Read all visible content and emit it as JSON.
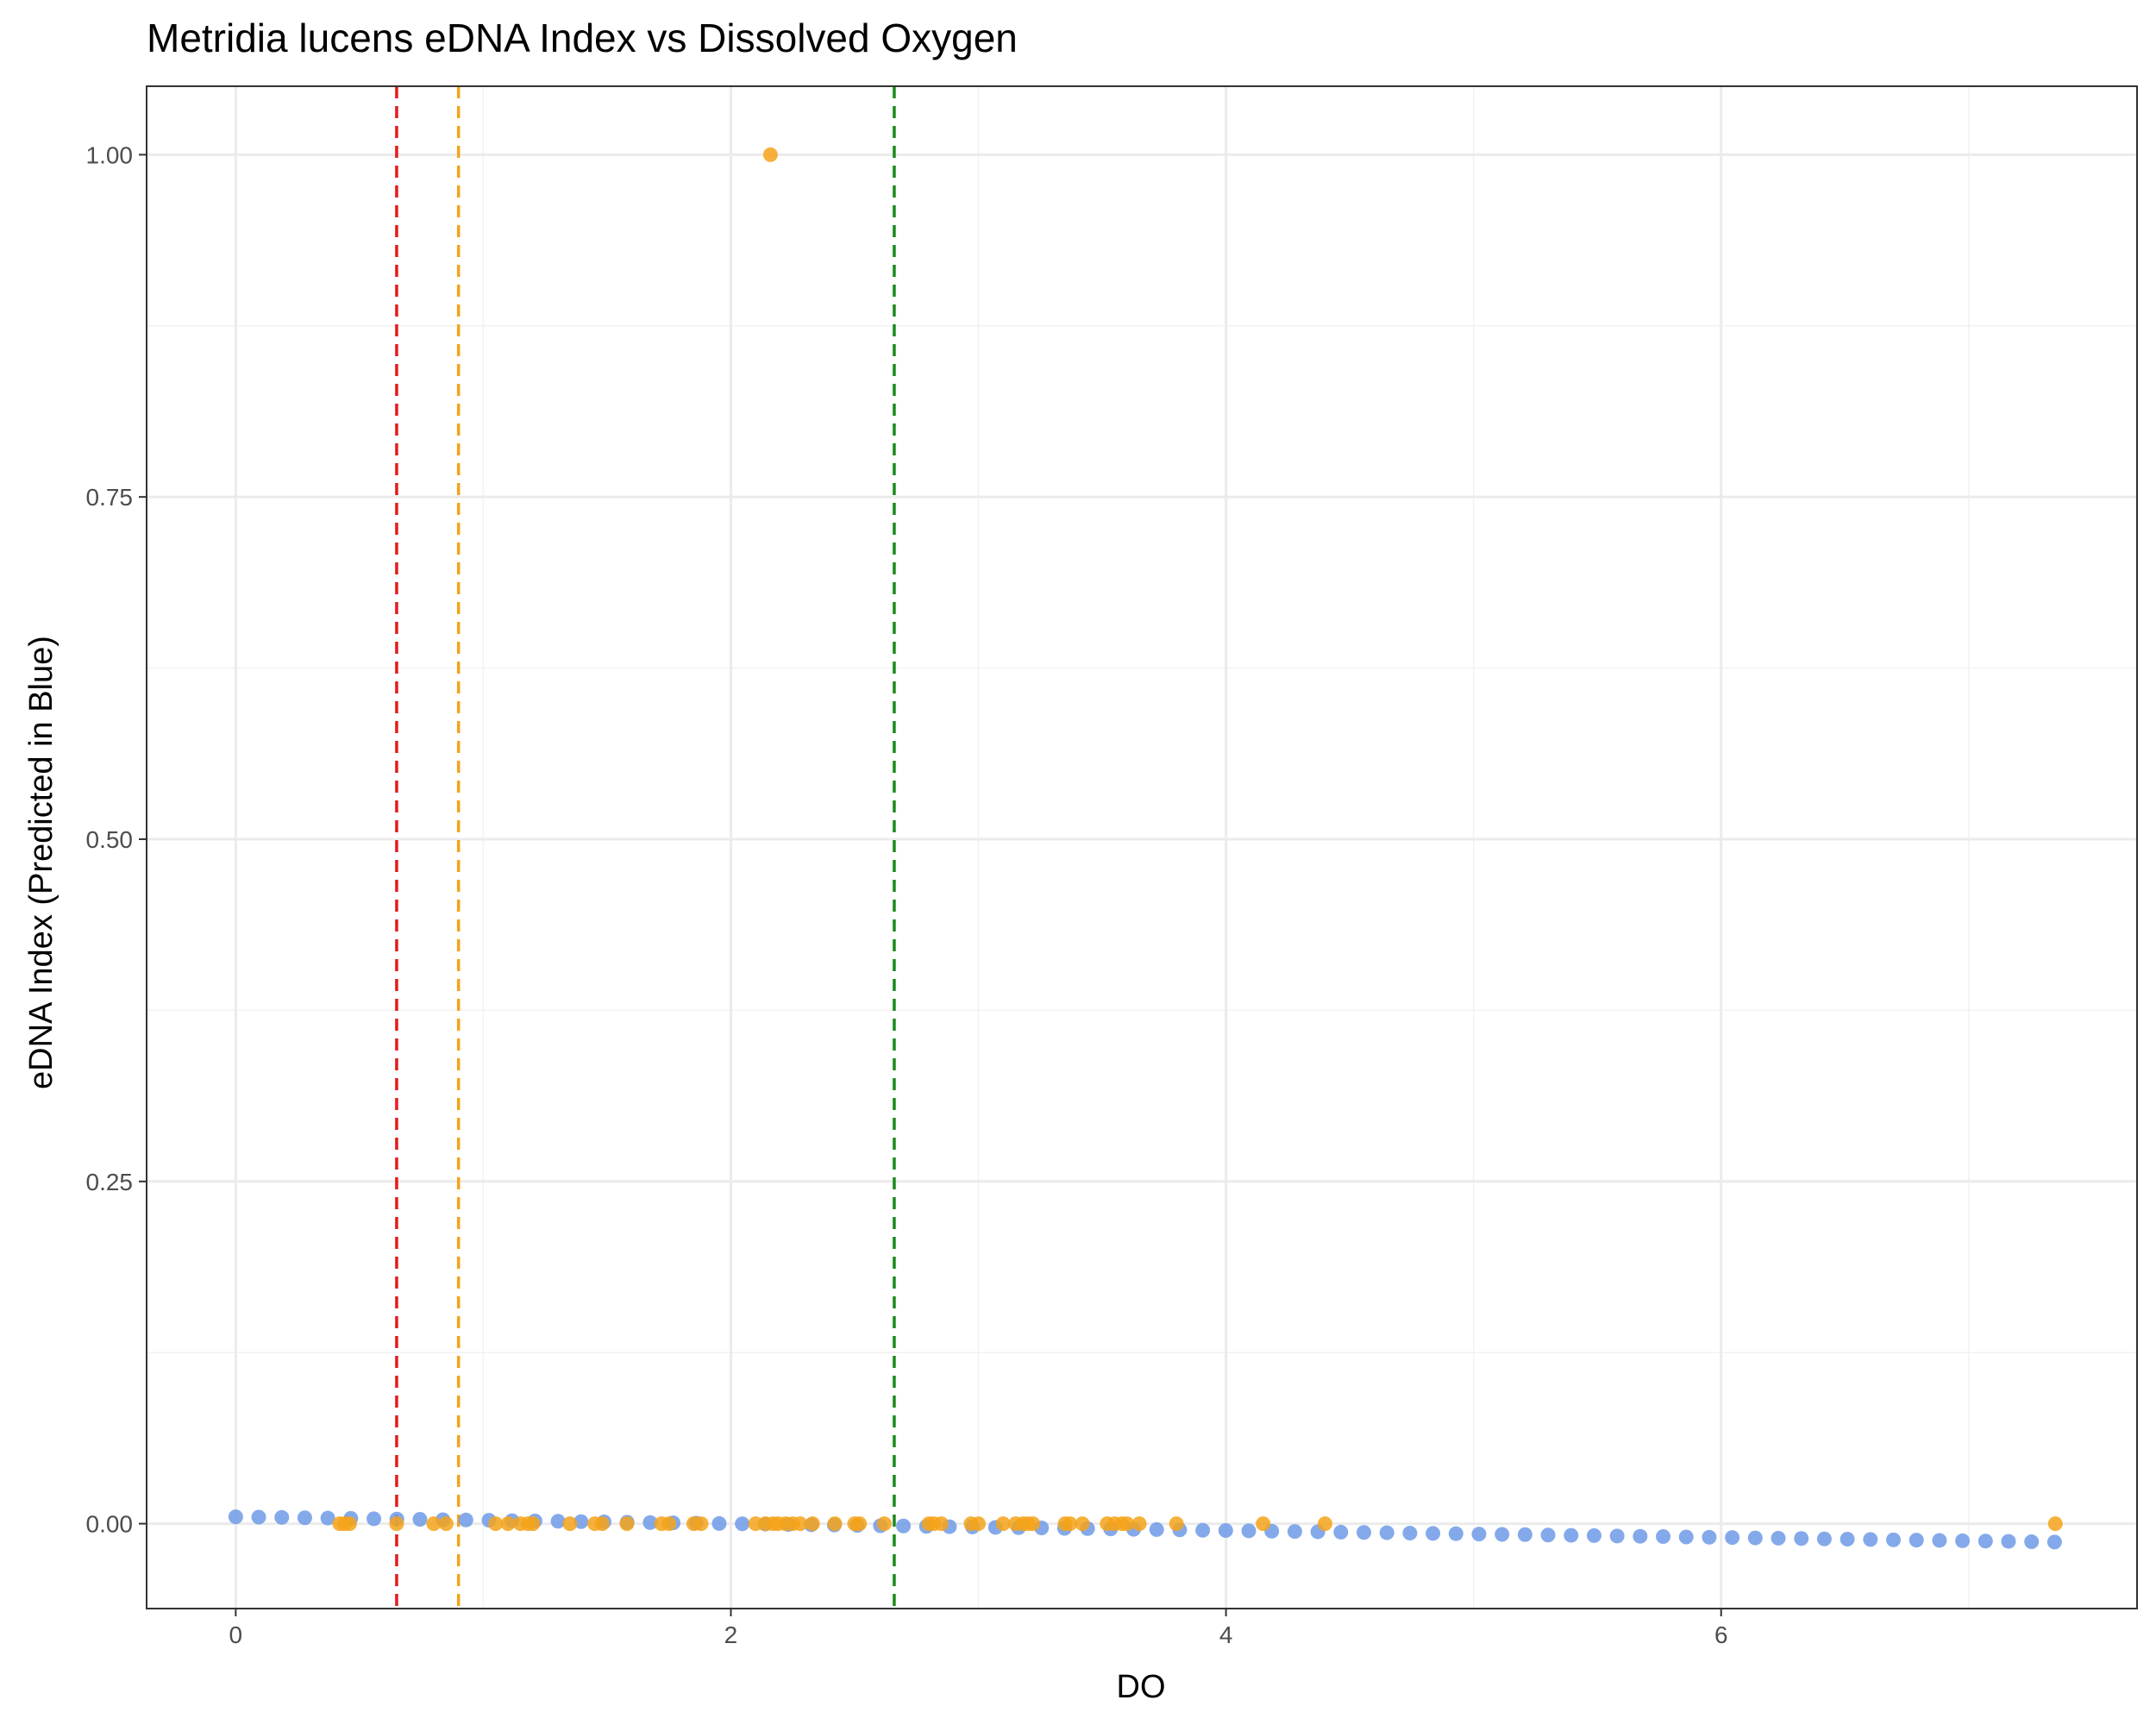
{
  "chart_data": {
    "type": "scatter",
    "title": "Metridia lucens eDNA Index vs Dissolved Oxygen",
    "xlabel": "DO",
    "ylabel": "eDNA Index (Predicted in Blue)",
    "xlim": [
      -0.36,
      7.68
    ],
    "ylim": [
      -0.062,
      1.05
    ],
    "x_ticks": [
      0,
      2,
      4,
      6
    ],
    "x_tick_labels": [
      "0",
      "2",
      "4",
      "6"
    ],
    "y_ticks": [
      0,
      0.25,
      0.5,
      0.75,
      1.0
    ],
    "y_tick_labels": [
      "0.00",
      "0.25",
      "0.50",
      "0.75",
      "1.00"
    ],
    "grid": true,
    "reference_lines": [
      {
        "x": 0.65,
        "color": "#e41a1c",
        "style": "dashed"
      },
      {
        "x": 0.9,
        "color": "#f5a31a",
        "style": "dashed"
      },
      {
        "x": 2.66,
        "color": "#1a8a1a",
        "style": "dashed"
      }
    ],
    "series": [
      {
        "color": "#6f9ae8",
        "x": [
          0.0,
          0.093,
          0.186,
          0.279,
          0.372,
          0.465,
          0.558,
          0.651,
          0.744,
          0.837,
          0.93,
          1.023,
          1.116,
          1.209,
          1.302,
          1.395,
          1.488,
          1.581,
          1.674,
          1.767,
          1.86,
          1.953,
          2.046,
          2.139,
          2.232,
          2.325,
          2.418,
          2.511,
          2.604,
          2.697,
          2.79,
          2.883,
          2.976,
          3.069,
          3.162,
          3.255,
          3.348,
          3.441,
          3.534,
          3.627,
          3.72,
          3.813,
          3.906,
          3.999,
          4.092,
          4.185,
          4.278,
          4.371,
          4.464,
          4.557,
          4.65,
          4.743,
          4.836,
          4.929,
          5.022,
          5.115,
          5.208,
          5.301,
          5.394,
          5.487,
          5.58,
          5.673,
          5.766,
          5.859,
          5.952,
          6.045,
          6.138,
          6.231,
          6.324,
          6.417,
          6.51,
          6.603,
          6.696,
          6.789,
          6.882,
          6.975,
          7.068,
          7.161,
          7.254,
          7.347
        ],
        "y": [
          0.005,
          0.0048,
          0.0046,
          0.0043,
          0.0041,
          0.0039,
          0.0036,
          0.0034,
          0.0032,
          0.0029,
          0.0027,
          0.0025,
          0.0022,
          0.002,
          0.0018,
          0.0015,
          0.0013,
          0.0011,
          0.0008,
          0.0006,
          0.0004,
          0.0001,
          -0.0001,
          -0.0003,
          -0.0006,
          -0.0008,
          -0.001,
          -0.0013,
          -0.0015,
          -0.0017,
          -0.002,
          -0.0022,
          -0.0024,
          -0.0027,
          -0.0029,
          -0.0031,
          -0.0034,
          -0.0036,
          -0.0038,
          -0.0041,
          -0.0043,
          -0.0045,
          -0.0048,
          -0.005,
          -0.0052,
          -0.0055,
          -0.0057,
          -0.0059,
          -0.0062,
          -0.0064,
          -0.0066,
          -0.0069,
          -0.0071,
          -0.0073,
          -0.0076,
          -0.0078,
          -0.008,
          -0.0083,
          -0.0085,
          -0.0087,
          -0.009,
          -0.0092,
          -0.0094,
          -0.0097,
          -0.0099,
          -0.0101,
          -0.0104,
          -0.0106,
          -0.0108,
          -0.0111,
          -0.0113,
          -0.0115,
          -0.0118,
          -0.012,
          -0.0122,
          -0.0125,
          -0.0127,
          -0.0129,
          -0.0132,
          -0.0134
        ]
      },
      {
        "color": "#f5a31a",
        "x": [
          0.42,
          0.44,
          0.46,
          0.65,
          0.8,
          0.85,
          1.05,
          1.1,
          1.15,
          1.18,
          1.2,
          1.35,
          1.45,
          1.48,
          1.58,
          1.72,
          1.75,
          1.85,
          1.88,
          2.1,
          2.14,
          2.16,
          2.17,
          2.19,
          2.22,
          2.25,
          2.28,
          2.33,
          2.42,
          2.5,
          2.52,
          2.62,
          2.8,
          2.82,
          2.85,
          2.97,
          3.0,
          3.1,
          3.15,
          3.18,
          3.2,
          3.22,
          3.35,
          3.37,
          3.42,
          3.52,
          3.55,
          3.58,
          3.6,
          3.65,
          3.8,
          4.15,
          4.4,
          7.35
        ],
        "y": [
          0,
          0,
          0,
          0,
          0,
          0,
          0,
          0,
          0,
          0,
          0,
          0,
          0,
          0,
          0,
          0,
          0,
          0,
          0,
          0,
          0,
          1.0,
          0,
          0,
          0,
          0,
          0,
          0,
          0,
          0,
          0,
          0,
          0,
          0,
          0,
          0,
          0,
          0,
          0,
          0,
          0,
          0,
          0,
          0,
          0,
          0,
          0,
          0,
          0,
          0,
          0,
          0,
          0,
          0
        ]
      }
    ]
  }
}
